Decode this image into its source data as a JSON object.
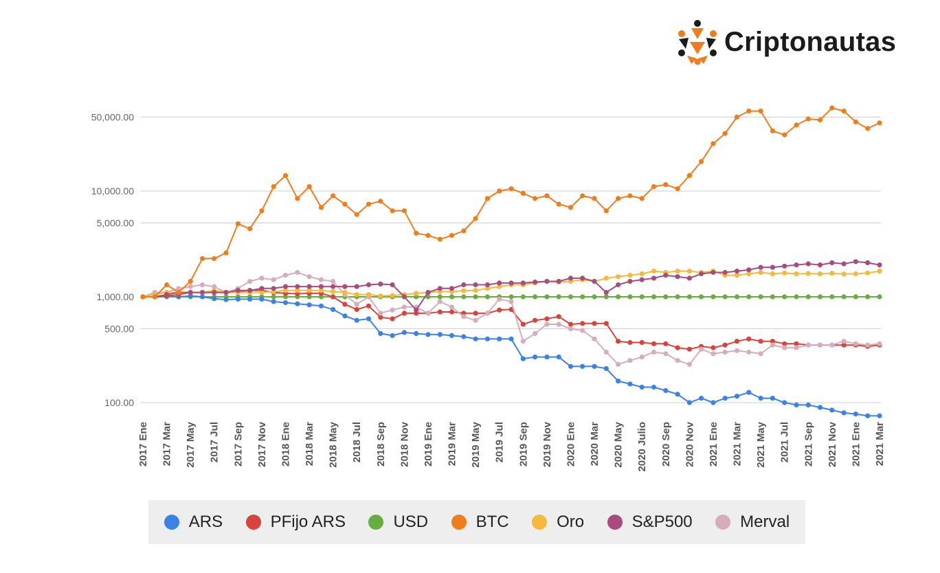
{
  "brand": {
    "name": "Criptonautas",
    "accent": "#f07d1b",
    "dark": "#1b1b1b"
  },
  "legend": [
    {
      "label": "ARS",
      "color": "#3b82e6"
    },
    {
      "label": "PFijo ARS",
      "color": "#d9433b"
    },
    {
      "label": "USD",
      "color": "#67ad3f"
    },
    {
      "label": "BTC",
      "color": "#f07d1b"
    },
    {
      "label": "Oro",
      "color": "#f6b93b"
    },
    {
      "label": "S&P500",
      "color": "#a84b7d"
    },
    {
      "label": "Merval",
      "color": "#d6aebb"
    }
  ],
  "chart_data": {
    "type": "line",
    "yscale": "log",
    "ylim": [
      70,
      70000
    ],
    "grid": true,
    "legend_position": "bottom",
    "yticks": [
      {
        "value": 100,
        "label": "100.00"
      },
      {
        "value": 500,
        "label": "500.00"
      },
      {
        "value": 1000,
        "label": "1,000.00"
      },
      {
        "value": 5000,
        "label": "5,000.00"
      },
      {
        "value": 10000,
        "label": "10,000.00"
      },
      {
        "value": 50000,
        "label": "50,000.00"
      }
    ],
    "xticks": [
      {
        "index": 0,
        "label": "2017 Ene"
      },
      {
        "index": 2,
        "label": "2017 Mar"
      },
      {
        "index": 4,
        "label": "2017 May"
      },
      {
        "index": 6,
        "label": "2017 Jul"
      },
      {
        "index": 8,
        "label": "2017 Sep"
      },
      {
        "index": 10,
        "label": "2017 Nov"
      },
      {
        "index": 12,
        "label": "2018 Ene"
      },
      {
        "index": 14,
        "label": "2018 Mar"
      },
      {
        "index": 16,
        "label": "2018 May"
      },
      {
        "index": 18,
        "label": "2018 Jul"
      },
      {
        "index": 20,
        "label": "2018 Sep"
      },
      {
        "index": 22,
        "label": "2018 Nov"
      },
      {
        "index": 24,
        "label": "2019 Ene"
      },
      {
        "index": 26,
        "label": "2019 Mar"
      },
      {
        "index": 28,
        "label": "2019 May"
      },
      {
        "index": 30,
        "label": "2019 Jul"
      },
      {
        "index": 32,
        "label": "2019 Sep"
      },
      {
        "index": 34,
        "label": "2019 Nov"
      },
      {
        "index": 36,
        "label": "2020 Ene"
      },
      {
        "index": 38,
        "label": "2020 Mar"
      },
      {
        "index": 40,
        "label": "2020 May"
      },
      {
        "index": 42,
        "label": "2020 Julio"
      },
      {
        "index": 44,
        "label": "2020 Sep"
      },
      {
        "index": 46,
        "label": "2020 Nov"
      },
      {
        "index": 48,
        "label": "2021 Ene"
      },
      {
        "index": 50,
        "label": "2021 Mar"
      },
      {
        "index": 52,
        "label": "2021 May"
      },
      {
        "index": 54,
        "label": "2021 Jul"
      },
      {
        "index": 56,
        "label": "2021 Sep"
      },
      {
        "index": 58,
        "label": "2021 Nov"
      },
      {
        "index": 60,
        "label": "2021 Ene"
      },
      {
        "index": 62,
        "label": "2021 Mar"
      }
    ],
    "series": [
      {
        "name": "ARS",
        "color": "#3b82e6",
        "values": [
          1000,
          1000,
          1010,
          1000,
          1020,
          1000,
          960,
          940,
          950,
          950,
          950,
          900,
          880,
          860,
          840,
          820,
          760,
          660,
          600,
          620,
          450,
          430,
          460,
          450,
          440,
          440,
          430,
          420,
          400,
          400,
          400,
          400,
          260,
          270,
          270,
          270,
          220,
          220,
          220,
          210,
          160,
          150,
          140,
          140,
          130,
          120,
          100,
          110,
          100,
          110,
          115,
          125,
          110,
          110,
          100,
          95,
          95,
          90,
          85,
          80,
          78,
          75,
          75
        ]
      },
      {
        "name": "PFijo ARS",
        "color": "#d9433b",
        "values": [
          1000,
          1000,
          1020,
          1050,
          1100,
          1100,
          1100,
          1100,
          1120,
          1150,
          1150,
          1100,
          1080,
          1070,
          1080,
          1080,
          1000,
          850,
          760,
          820,
          640,
          620,
          700,
          700,
          700,
          720,
          720,
          700,
          700,
          700,
          750,
          760,
          550,
          600,
          620,
          650,
          550,
          560,
          560,
          560,
          380,
          370,
          370,
          360,
          360,
          330,
          320,
          340,
          330,
          350,
          380,
          400,
          380,
          380,
          360,
          360,
          350,
          350,
          350,
          350,
          350,
          340,
          350
        ]
      },
      {
        "name": "USD",
        "color": "#67ad3f",
        "values": [
          1000,
          1000,
          1000,
          1000,
          1000,
          1000,
          1000,
          1000,
          1000,
          1000,
          1000,
          1000,
          1000,
          1000,
          1000,
          1000,
          1000,
          1000,
          1000,
          1000,
          1000,
          1000,
          1000,
          1000,
          1000,
          1000,
          1000,
          1000,
          1000,
          1000,
          1000,
          1000,
          1000,
          1000,
          1000,
          1000,
          1000,
          1000,
          1000,
          1000,
          1000,
          1000,
          1000,
          1000,
          1000,
          1000,
          1000,
          1000,
          1000,
          1000,
          1000,
          1000,
          1000,
          1000,
          1000,
          1000,
          1000,
          1000,
          1000,
          1000,
          1000,
          1000,
          1000
        ]
      },
      {
        "name": "BTC",
        "color": "#f07d1b",
        "values": [
          1000,
          1000,
          1300,
          1100,
          1400,
          2300,
          2300,
          2600,
          4900,
          4400,
          6500,
          11000,
          14000,
          8500,
          11000,
          7000,
          9000,
          7500,
          6000,
          7500,
          8000,
          6500,
          6500,
          4000,
          3800,
          3500,
          3800,
          4200,
          5500,
          8500,
          10000,
          10500,
          9500,
          8500,
          9000,
          7500,
          7000,
          9000,
          8500,
          6500,
          8500,
          9000,
          8500,
          11000,
          11500,
          10500,
          14000,
          19000,
          28000,
          35000,
          50000,
          57000,
          57000,
          37000,
          34000,
          42000,
          48000,
          47000,
          61000,
          57000,
          45000,
          39000,
          44000
        ]
      },
      {
        "name": "Oro",
        "color": "#f6b93b",
        "values": [
          1000,
          1050,
          1100,
          1100,
          1100,
          1100,
          1150,
          1100,
          1100,
          1100,
          1100,
          1120,
          1150,
          1150,
          1150,
          1150,
          1120,
          1100,
          1050,
          1050,
          1020,
          1030,
          1050,
          1080,
          1100,
          1120,
          1120,
          1140,
          1150,
          1200,
          1250,
          1300,
          1300,
          1350,
          1400,
          1380,
          1400,
          1450,
          1400,
          1500,
          1550,
          1600,
          1650,
          1750,
          1700,
          1750,
          1750,
          1700,
          1750,
          1600,
          1600,
          1650,
          1700,
          1650,
          1680,
          1650,
          1660,
          1650,
          1670,
          1640,
          1650,
          1680,
          1750
        ]
      },
      {
        "name": "S&P500",
        "color": "#a84b7d",
        "values": [
          1000,
          1000,
          1050,
          1100,
          1100,
          1100,
          1100,
          1100,
          1150,
          1150,
          1200,
          1200,
          1250,
          1250,
          1250,
          1250,
          1250,
          1250,
          1250,
          1300,
          1320,
          1300,
          1000,
          750,
          1100,
          1200,
          1200,
          1300,
          1300,
          1300,
          1350,
          1350,
          1350,
          1380,
          1400,
          1400,
          1500,
          1500,
          1400,
          1100,
          1300,
          1400,
          1450,
          1500,
          1600,
          1550,
          1500,
          1650,
          1700,
          1700,
          1750,
          1800,
          1900,
          1900,
          1950,
          2000,
          2050,
          2000,
          2100,
          2050,
          2150,
          2100,
          2000
        ]
      },
      {
        "name": "Merval",
        "color": "#d6aebb",
        "values": [
          1000,
          1100,
          1100,
          1200,
          1250,
          1300,
          1250,
          1100,
          1200,
          1400,
          1500,
          1450,
          1600,
          1700,
          1550,
          1450,
          1400,
          1050,
          850,
          1000,
          700,
          750,
          800,
          800,
          700,
          900,
          800,
          650,
          600,
          700,
          950,
          900,
          380,
          450,
          550,
          550,
          500,
          480,
          400,
          300,
          230,
          250,
          270,
          300,
          290,
          250,
          230,
          320,
          290,
          300,
          310,
          300,
          290,
          350,
          330,
          330,
          350,
          350,
          350,
          380,
          360,
          350,
          360
        ]
      }
    ]
  }
}
